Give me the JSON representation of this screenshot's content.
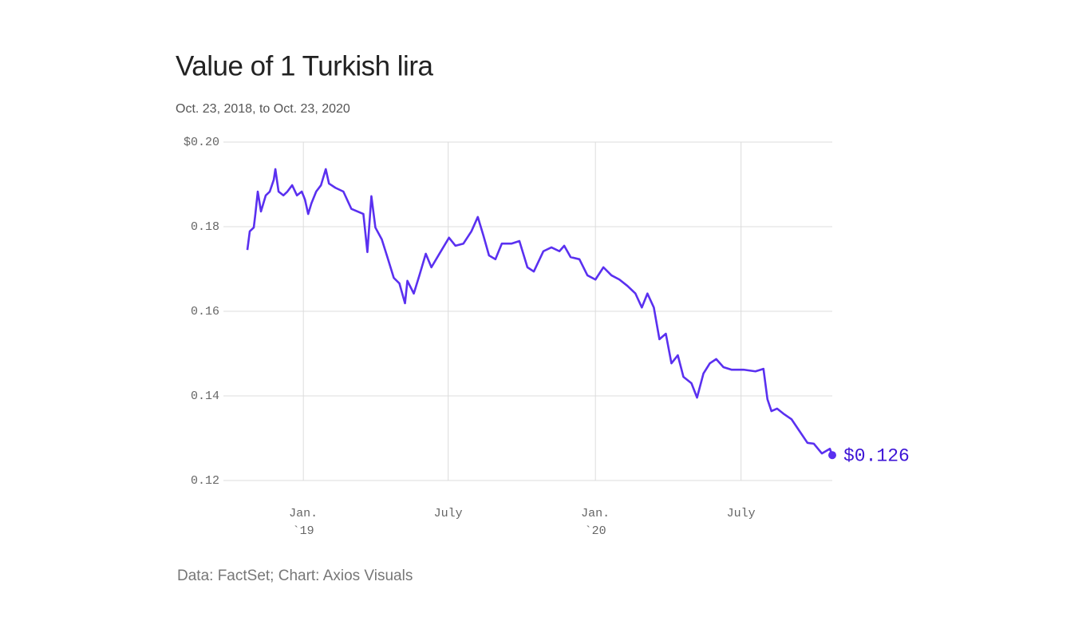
{
  "chart_data": {
    "type": "line",
    "title": "Value of 1 Turkish lira",
    "subtitle": "Oct. 23, 2018, to Oct. 23, 2020",
    "source": "Data: FactSet; Chart: Axios Visuals",
    "end_label": "$0.126",
    "grid": true,
    "xlim": [
      "2018-10-23",
      "2020-10-23"
    ],
    "xticks": [
      {
        "value": "2019-01-01",
        "label": "Jan.",
        "year": "`19"
      },
      {
        "value": "2019-07-01",
        "label": "July"
      },
      {
        "value": "2020-01-01",
        "label": "Jan.",
        "year": "`20"
      },
      {
        "value": "2020-07-01",
        "label": "July"
      }
    ],
    "ylim": [
      0.12,
      0.2
    ],
    "yticks": [
      0.12,
      0.14,
      0.16,
      0.18,
      {
        "value": 0.2,
        "label": "$0.20"
      }
    ],
    "x": [
      "2018-10-23",
      "2018-10-26",
      "2018-10-31",
      "2018-11-02",
      "2018-11-05",
      "2018-11-09",
      "2018-11-15",
      "2018-11-20",
      "2018-11-25",
      "2018-11-27",
      "2018-12-01",
      "2018-12-07",
      "2018-12-12",
      "2018-12-18",
      "2018-12-24",
      "2018-12-30",
      "2019-01-03",
      "2019-01-07",
      "2019-01-11",
      "2019-01-17",
      "2019-01-23",
      "2019-01-29",
      "2019-02-02",
      "2019-02-10",
      "2019-02-20",
      "2019-03-02",
      "2019-03-17",
      "2019-03-22",
      "2019-03-27",
      "2019-04-01",
      "2019-04-09",
      "2019-04-16",
      "2019-04-24",
      "2019-05-01",
      "2019-05-08",
      "2019-05-11",
      "2019-05-19",
      "2019-05-26",
      "2019-06-03",
      "2019-06-10",
      "2019-06-20",
      "2019-07-02",
      "2019-07-10",
      "2019-07-20",
      "2019-07-30",
      "2019-08-07",
      "2019-08-14",
      "2019-08-21",
      "2019-08-29",
      "2019-09-06",
      "2019-09-18",
      "2019-09-28",
      "2019-10-08",
      "2019-10-16",
      "2019-10-28",
      "2019-11-07",
      "2019-11-17",
      "2019-11-23",
      "2019-12-01",
      "2019-12-12",
      "2019-12-22",
      "2020-01-01",
      "2020-01-11",
      "2020-01-21",
      "2020-01-31",
      "2020-02-10",
      "2020-02-20",
      "2020-02-28",
      "2020-03-06",
      "2020-03-14",
      "2020-03-21",
      "2020-03-29",
      "2020-04-05",
      "2020-04-13",
      "2020-04-20",
      "2020-04-30",
      "2020-05-07",
      "2020-05-15",
      "2020-05-23",
      "2020-05-31",
      "2020-06-09",
      "2020-06-19",
      "2020-07-04",
      "2020-07-19",
      "2020-07-29",
      "2020-08-03",
      "2020-08-08",
      "2020-08-15",
      "2020-08-23",
      "2020-09-02",
      "2020-09-12",
      "2020-09-22",
      "2020-09-30",
      "2020-10-10",
      "2020-10-20",
      "2020-10-23"
    ],
    "series": [
      {
        "name": "Turkish lira",
        "color": "#5a30f0",
        "values": [
          0.1745,
          0.1789,
          0.1798,
          0.183,
          0.1883,
          0.1836,
          0.1874,
          0.1883,
          0.1911,
          0.1936,
          0.1883,
          0.1874,
          0.1883,
          0.1898,
          0.1874,
          0.1883,
          0.1864,
          0.183,
          0.1855,
          0.1883,
          0.1898,
          0.1936,
          0.1902,
          0.1892,
          0.1883,
          0.1842,
          0.183,
          0.174,
          0.1872,
          0.1798,
          0.177,
          0.1728,
          0.1679,
          0.1666,
          0.1619,
          0.1672,
          0.1642,
          0.1685,
          0.1736,
          0.1704,
          0.1736,
          0.1774,
          0.1755,
          0.176,
          0.1789,
          0.1823,
          0.1779,
          0.1732,
          0.1723,
          0.176,
          0.176,
          0.1766,
          0.1704,
          0.1694,
          0.1742,
          0.1751,
          0.1742,
          0.1755,
          0.1728,
          0.1723,
          0.1685,
          0.1675,
          0.1704,
          0.1685,
          0.1675,
          0.166,
          0.1642,
          0.1609,
          0.1642,
          0.1609,
          0.1534,
          0.1547,
          0.1477,
          0.1496,
          0.1445,
          0.143,
          0.1396,
          0.1453,
          0.1477,
          0.1487,
          0.1468,
          0.1462,
          0.1462,
          0.1458,
          0.1464,
          0.1392,
          0.1364,
          0.137,
          0.1358,
          0.1345,
          0.1317,
          0.1289,
          0.1287,
          0.1264,
          0.1275,
          0.126
        ]
      }
    ]
  }
}
